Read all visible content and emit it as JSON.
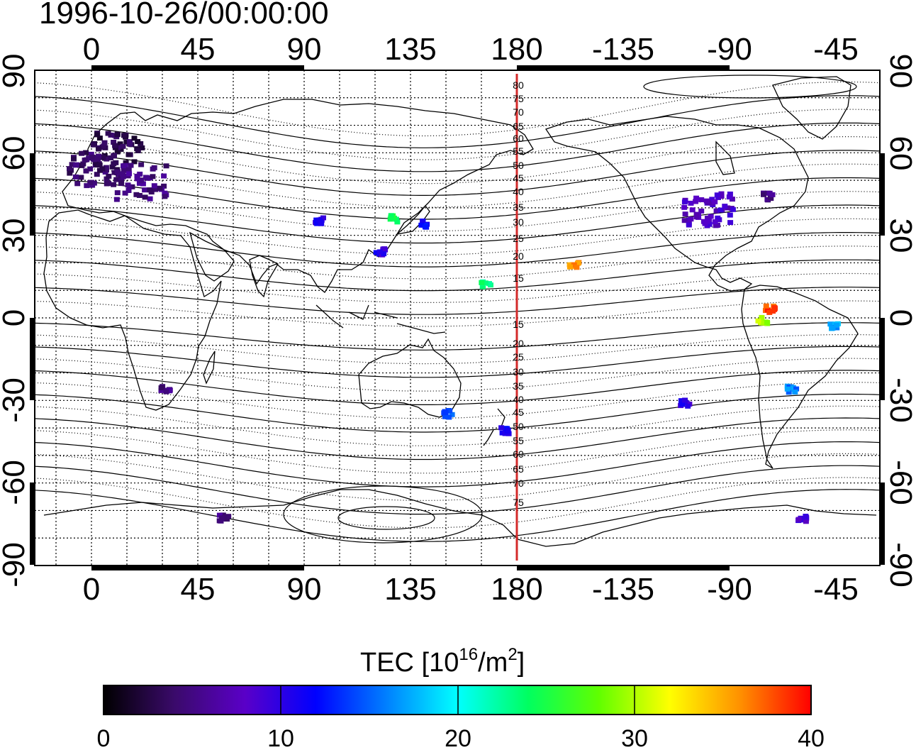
{
  "map": {
    "title": "1996-10-26/00:00:00",
    "lon_ticks_top": [
      "0",
      "45",
      "90",
      "135",
      "180",
      "-135",
      "-90",
      "-45"
    ],
    "lon_ticks_bottom": [
      "0",
      "45",
      "90",
      "135",
      "180",
      "-135",
      "-90",
      "-45"
    ],
    "lat_ticks_left": [
      "90",
      "60",
      "30",
      "0",
      "-30",
      "-60",
      "-90"
    ],
    "lat_ticks_right": [
      "90",
      "60",
      "30",
      "0",
      "-30",
      "-60",
      "-90"
    ],
    "contour_labels": [
      "80",
      "75",
      "70",
      "65",
      "60",
      "55",
      "50",
      "45",
      "40",
      "35",
      "30",
      "25",
      "20",
      "15",
      "15",
      "20",
      "25",
      "30",
      "35",
      "40",
      "45",
      "50",
      "55",
      "60",
      "65",
      "70",
      "75"
    ],
    "meridian_color": "#d42a2a",
    "colorbar": {
      "label": "TEC  [10",
      "label_exp1": "16",
      "label_mid": "/m",
      "label_exp2": "2",
      "label_end": "]",
      "ticks": [
        "0",
        "10",
        "20",
        "30",
        "40"
      ],
      "colors": [
        "#000000",
        "#3a0a6a",
        "#5a00c8",
        "#0000ff",
        "#0080ff",
        "#00ffff",
        "#00ff60",
        "#60ff00",
        "#ffff00",
        "#ff9000",
        "#ff0000"
      ]
    }
  },
  "chart_data": {
    "type": "heatmap",
    "title": "1996-10-26/00:00:00",
    "xlabel": "",
    "ylabel": "",
    "colorbar_label": "TEC [10^16/m^2]",
    "color_range": [
      0,
      40
    ],
    "points": [
      {
        "lon": 10,
        "lat": 62,
        "tec": 3
      },
      {
        "lon": 0,
        "lat": 55,
        "tec": 4
      },
      {
        "lon": 20,
        "lat": 50,
        "tec": 5
      },
      {
        "lon": 95,
        "lat": 36,
        "tec": 10
      },
      {
        "lon": 127,
        "lat": 37,
        "tec": 25
      },
      {
        "lon": 139,
        "lat": 35,
        "tec": 12
      },
      {
        "lon": 121,
        "lat": 25,
        "tec": 10
      },
      {
        "lon": 166,
        "lat": 13,
        "tec": 23
      },
      {
        "lon": -157,
        "lat": 20,
        "tec": 36
      },
      {
        "lon": -100,
        "lat": 40,
        "tec": 8
      },
      {
        "lon": -75,
        "lat": 45,
        "tec": 5
      },
      {
        "lon": -74,
        "lat": 4,
        "tec": 38
      },
      {
        "lon": -77,
        "lat": 0,
        "tec": 30
      },
      {
        "lon": -65,
        "lat": -25,
        "tec": 16
      },
      {
        "lon": -47,
        "lat": -2,
        "tec": 17
      },
      {
        "lon": 150,
        "lat": -34,
        "tec": 15
      },
      {
        "lon": 174,
        "lat": -40,
        "tec": 11
      },
      {
        "lon": -110,
        "lat": -30,
        "tec": 10
      },
      {
        "lon": -60,
        "lat": -72,
        "tec": 9
      },
      {
        "lon": 30,
        "lat": -25,
        "tec": 5
      },
      {
        "lon": 55,
        "lat": -72,
        "tec": 5
      }
    ]
  }
}
